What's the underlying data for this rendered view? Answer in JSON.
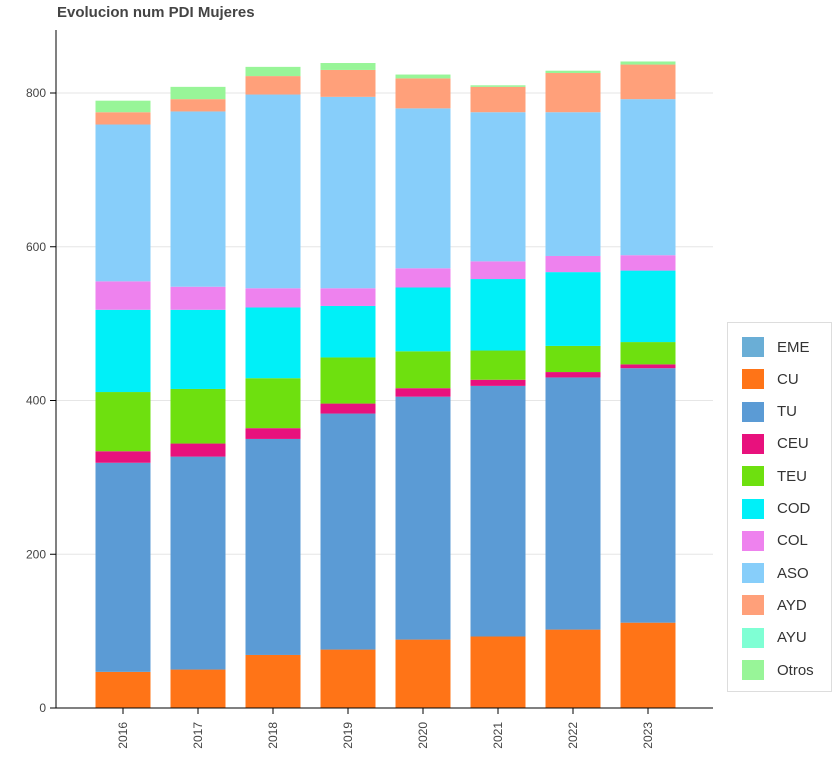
{
  "chart_data": {
    "type": "bar",
    "stacked": true,
    "title": "Evolucion num PDI Mujeres",
    "xlabel": "",
    "ylabel": "",
    "ylim": [
      0,
      880
    ],
    "yticks": [
      0,
      200,
      400,
      600,
      800
    ],
    "grid": true,
    "legend_position": "right",
    "categories": [
      "2016",
      "2017",
      "2018",
      "2019",
      "2020",
      "2021",
      "2022",
      "2023"
    ],
    "series": [
      {
        "name": "EME",
        "color": "#6aaed6",
        "values": [
          0,
          0,
          0,
          0,
          0,
          0,
          0,
          0
        ]
      },
      {
        "name": "CU",
        "color": "#ff7417",
        "values": [
          47,
          50,
          69,
          76,
          89,
          93,
          102,
          111
        ]
      },
      {
        "name": "TU",
        "color": "#5b9bd5",
        "values": [
          272,
          277,
          281,
          307,
          316,
          326,
          328,
          331
        ]
      },
      {
        "name": "CEU",
        "color": "#e8117d",
        "values": [
          15,
          17,
          14,
          13,
          11,
          8,
          7,
          5
        ]
      },
      {
        "name": "TEU",
        "color": "#6ee00f",
        "values": [
          77,
          71,
          65,
          60,
          48,
          38,
          34,
          29
        ]
      },
      {
        "name": "COD",
        "color": "#00f0f8",
        "values": [
          107,
          103,
          92,
          67,
          83,
          93,
          96,
          93
        ]
      },
      {
        "name": "COL",
        "color": "#ee82ee",
        "values": [
          37,
          30,
          25,
          23,
          25,
          23,
          21,
          20
        ]
      },
      {
        "name": "ASO",
        "color": "#87cefa",
        "values": [
          204,
          228,
          252,
          249,
          208,
          194,
          187,
          203
        ]
      },
      {
        "name": "AYD",
        "color": "#ffa07a",
        "values": [
          16,
          16,
          24,
          35,
          39,
          33,
          51,
          45
        ]
      },
      {
        "name": "AYU",
        "color": "#7fffd4",
        "values": [
          0,
          0,
          0,
          0,
          0,
          0,
          0,
          0
        ]
      },
      {
        "name": "Otros",
        "color": "#98f598",
        "values": [
          15,
          16,
          12,
          9,
          5,
          2,
          3,
          4
        ]
      }
    ]
  }
}
